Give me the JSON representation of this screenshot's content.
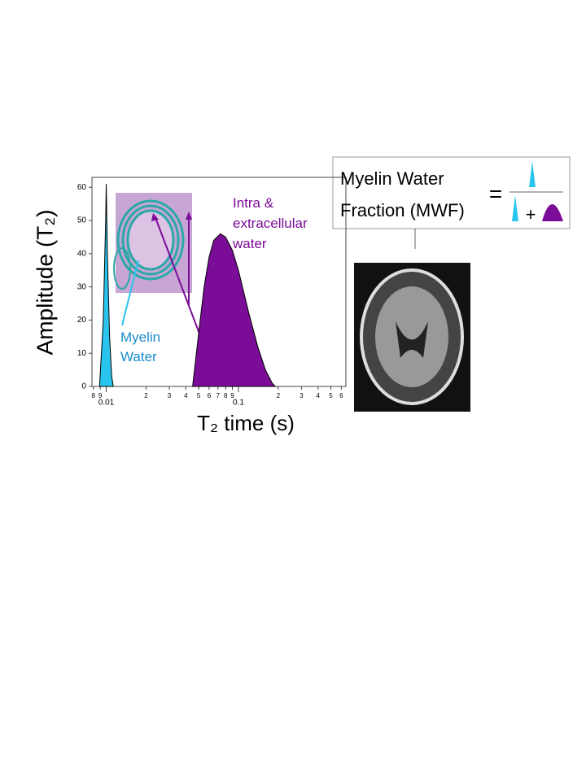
{
  "chart_data": {
    "type": "area",
    "y_label": "Amplitude (T₂)",
    "x_label": "T₂ time (s)",
    "log_x": true,
    "xlim": [
      0.0078,
      0.65
    ],
    "ylim": [
      0,
      63
    ],
    "xticks": [
      {
        "value": 0.008,
        "label": "8"
      },
      {
        "value": 0.009,
        "label": "9"
      },
      0.01,
      {
        "value": 0.02,
        "label": "2"
      },
      {
        "value": 0.03,
        "label": "3"
      },
      {
        "value": 0.04,
        "label": "4"
      },
      {
        "value": 0.05,
        "label": "5"
      },
      {
        "value": 0.06,
        "label": "6"
      },
      {
        "value": 0.07,
        "label": "7"
      },
      {
        "value": 0.08,
        "label": "8"
      },
      {
        "value": 0.09,
        "label": "9"
      },
      0.1,
      {
        "value": 0.2,
        "label": "2"
      },
      {
        "value": 0.3,
        "label": "3"
      },
      {
        "value": 0.4,
        "label": "4"
      },
      {
        "value": 0.5,
        "label": "5"
      },
      {
        "value": 0.6,
        "label": "6"
      }
    ],
    "yticks": [
      0,
      10,
      20,
      30,
      40,
      50,
      60
    ],
    "series": [
      {
        "name": "Myelin Water",
        "color": "#29c5ee",
        "label_color": "#1b8ccc",
        "x": [
          0.0089,
          0.0095,
          0.0099,
          0.01,
          0.0102,
          0.0106,
          0.011,
          0.0113
        ],
        "values": [
          0,
          20,
          50,
          61,
          40,
          15,
          3,
          0
        ]
      },
      {
        "name": "Intra & extracellular water",
        "color": "#7b0c98",
        "label_color": "#7b0c98",
        "x": [
          0.045,
          0.05,
          0.055,
          0.06,
          0.065,
          0.073,
          0.08,
          0.09,
          0.1,
          0.12,
          0.14,
          0.16,
          0.18,
          0.19
        ],
        "values": [
          0,
          16,
          30,
          39,
          44,
          46,
          45,
          41,
          35,
          22,
          12,
          5,
          1,
          0
        ]
      }
    ],
    "annotations": {
      "mwf": "Myelin Water Fraction (MWF)",
      "equals": "=",
      "plus": "+"
    }
  }
}
